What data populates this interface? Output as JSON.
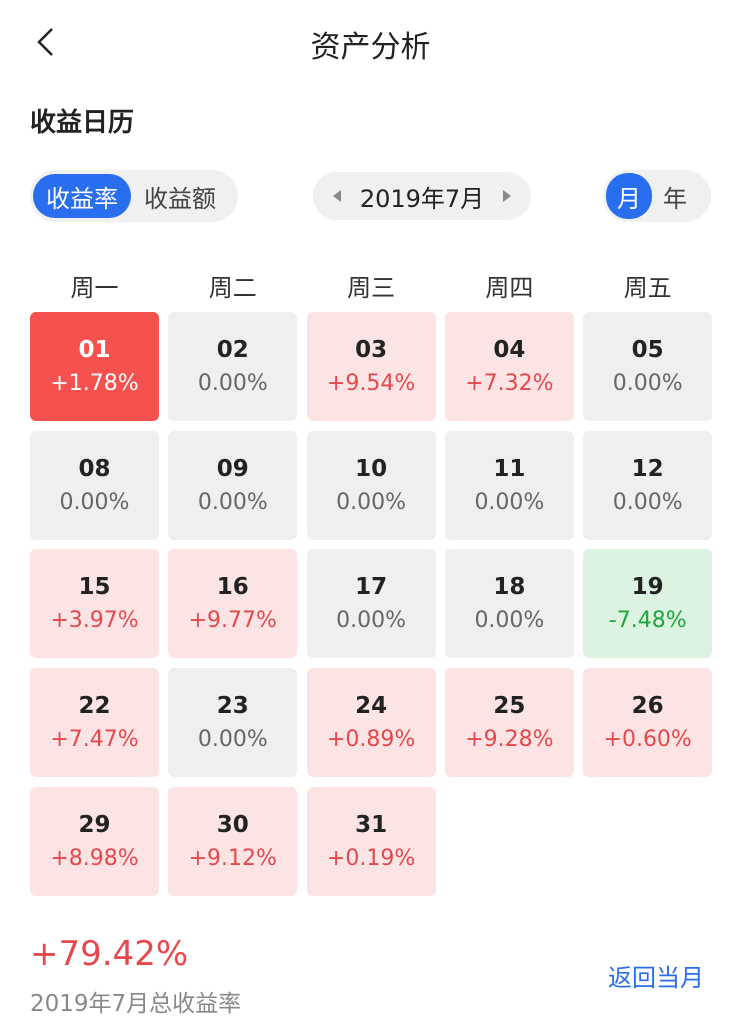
{
  "header": {
    "title": "资产分析"
  },
  "section_title": "收益日历",
  "metric_tabs": [
    {
      "label": "收益率",
      "selected": true
    },
    {
      "label": "收益额",
      "selected": false
    }
  ],
  "month": "2019年7月",
  "period_tabs": [
    {
      "label": "月",
      "selected": true
    },
    {
      "label": "年",
      "selected": false
    }
  ],
  "weekdays": [
    "周一",
    "周二",
    "周三",
    "周四",
    "周五"
  ],
  "days": [
    {
      "day": "01",
      "change": "+1.78%",
      "selected": true
    },
    {
      "day": "02",
      "change": "0.00%"
    },
    {
      "day": "03",
      "change": "+9.54%"
    },
    {
      "day": "04",
      "change": "+7.32%"
    },
    {
      "day": "05",
      "change": "0.00%"
    },
    {
      "day": "08",
      "change": "0.00%"
    },
    {
      "day": "09",
      "change": "0.00%"
    },
    {
      "day": "10",
      "change": "0.00%"
    },
    {
      "day": "11",
      "change": "0.00%"
    },
    {
      "day": "12",
      "change": "0.00%"
    },
    {
      "day": "15",
      "change": "+3.97%"
    },
    {
      "day": "16",
      "change": "+9.77%"
    },
    {
      "day": "17",
      "change": "0.00%"
    },
    {
      "day": "18",
      "change": "0.00%"
    },
    {
      "day": "19",
      "change": "-7.48%"
    },
    {
      "day": "22",
      "change": "+7.47%"
    },
    {
      "day": "23",
      "change": "0.00%"
    },
    {
      "day": "24",
      "change": "+0.89%"
    },
    {
      "day": "25",
      "change": "+9.28%"
    },
    {
      "day": "26",
      "change": "+0.60%"
    },
    {
      "day": "29",
      "change": "+8.98%"
    },
    {
      "day": "30",
      "change": "+9.12%"
    },
    {
      "day": "31",
      "change": "+0.19%"
    }
  ],
  "total": {
    "value": "+79.42%",
    "label": "2019年7月总收益率"
  },
  "back_link": "返回当月"
}
